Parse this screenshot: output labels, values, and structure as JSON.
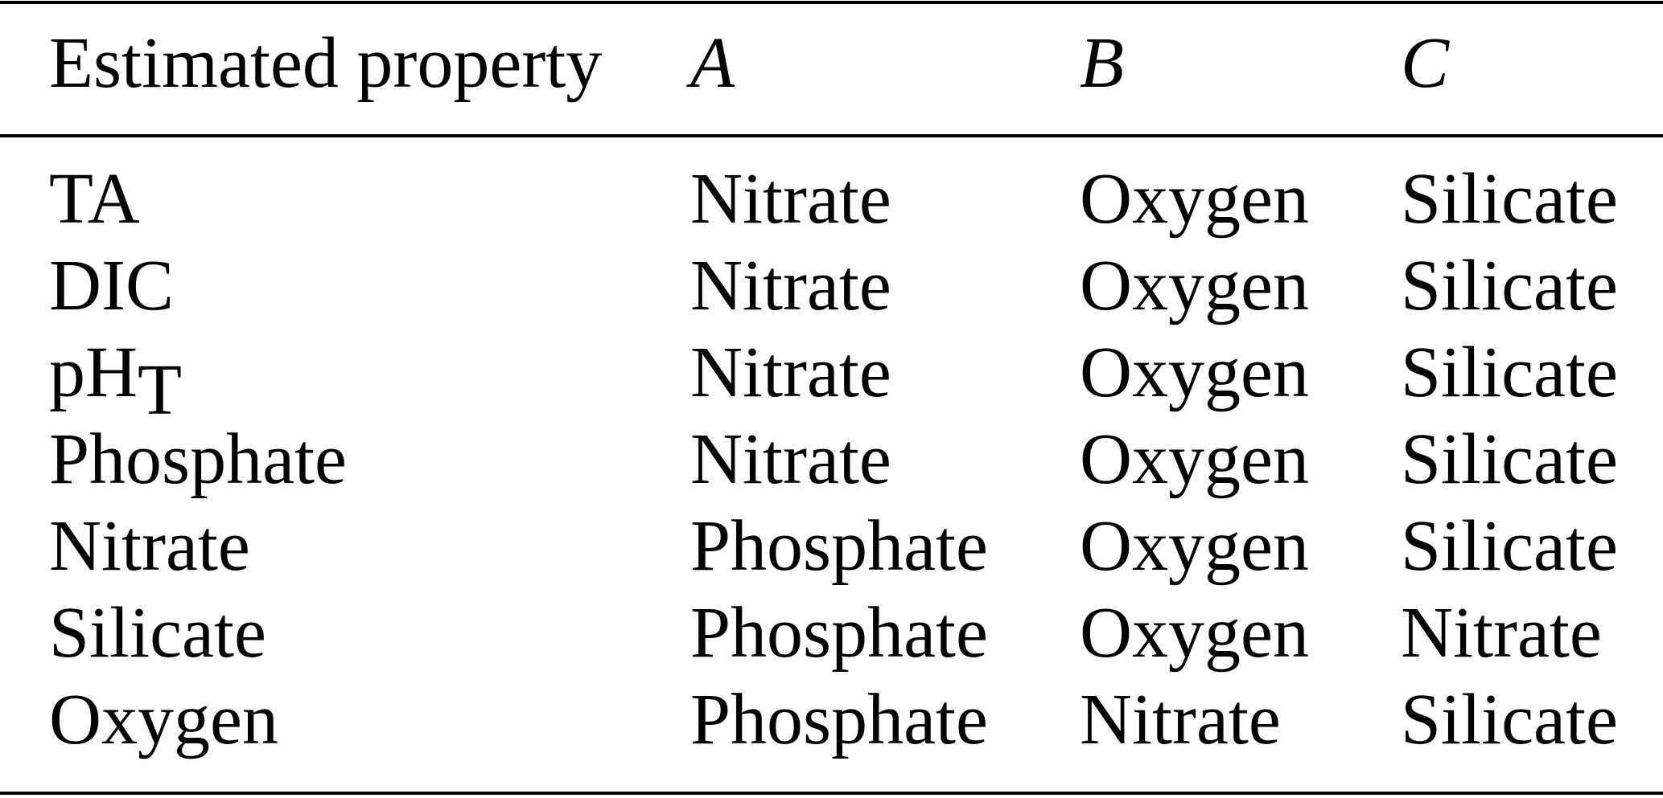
{
  "table": {
    "header": [
      "Estimated property",
      "A",
      "B",
      "C"
    ],
    "rows": [
      [
        "TA",
        "Nitrate",
        "Oxygen",
        "Silicate"
      ],
      [
        "DIC",
        "Nitrate",
        "Oxygen",
        "Silicate"
      ],
      [
        {
          "text": "pH",
          "sub": "T"
        },
        "Nitrate",
        "Oxygen",
        "Silicate"
      ],
      [
        "Phosphate",
        "Nitrate",
        "Oxygen",
        "Silicate"
      ],
      [
        "Nitrate",
        "Phosphate",
        "Oxygen",
        "Silicate"
      ],
      [
        "Silicate",
        "Phosphate",
        "Oxygen",
        "Nitrate"
      ],
      [
        "Oxygen",
        "Phosphate",
        "Nitrate",
        "Silicate"
      ]
    ]
  }
}
